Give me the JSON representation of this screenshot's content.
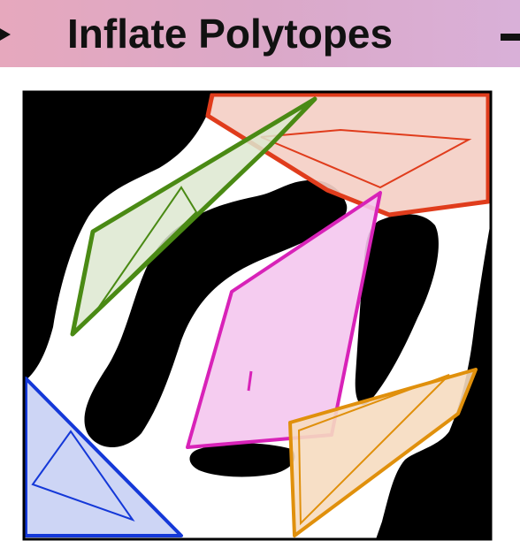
{
  "banner": {
    "title": "Inflate Polytopes",
    "left_icon": "triangle-right-icon",
    "right_icon": "arrow-right-icon"
  },
  "diagram": {
    "background": "#ffffff",
    "obstacle_color": "#000000",
    "polytopes": [
      {
        "name": "red",
        "stroke": "#e03c1c",
        "fill": "#f4cfc6"
      },
      {
        "name": "green",
        "stroke": "#4a8a14",
        "fill": "#dde8d0"
      },
      {
        "name": "magenta",
        "stroke": "#d822b8",
        "fill": "#f4c6ee"
      },
      {
        "name": "orange",
        "stroke": "#e0900c",
        "fill": "#f6dcc0"
      },
      {
        "name": "blue",
        "stroke": "#1438d8",
        "fill": "#c8d0f4"
      }
    ]
  }
}
